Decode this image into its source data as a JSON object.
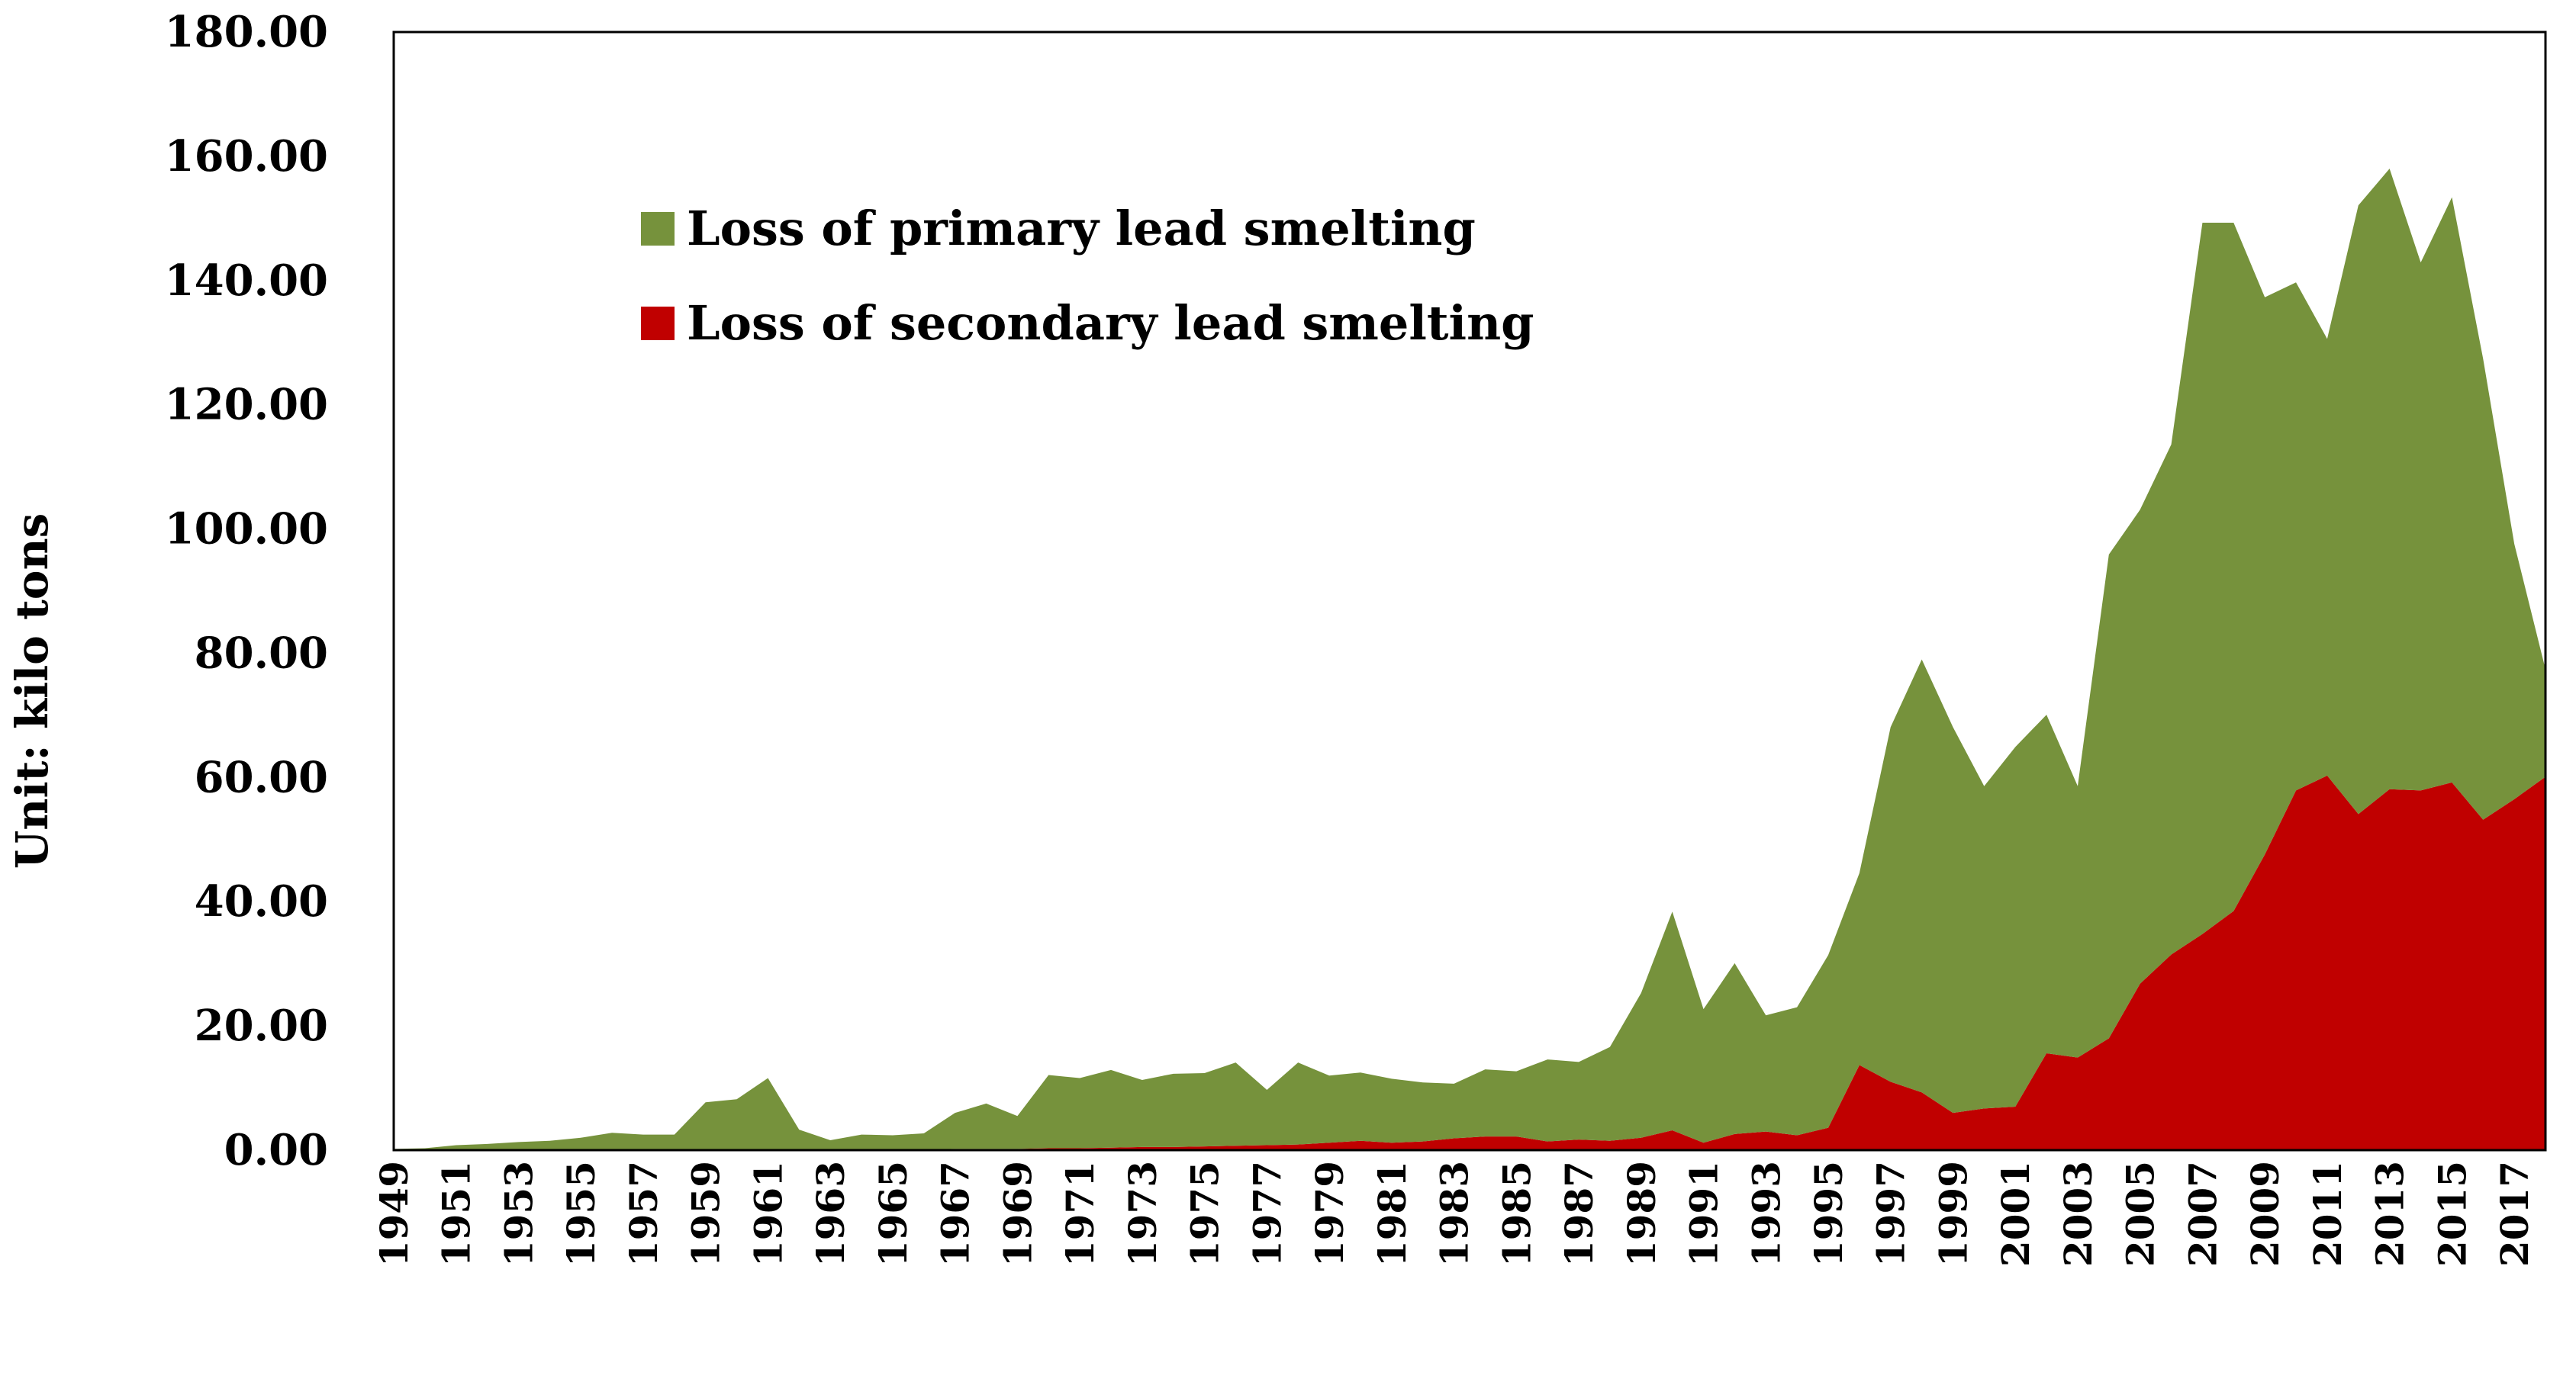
{
  "chart_data": {
    "type": "area",
    "stacked": true,
    "title": "",
    "xlabel": "",
    "ylabel": "Unit: kilo tons",
    "ylim": [
      0,
      180
    ],
    "yticks": [
      "0.00",
      "20.00",
      "40.00",
      "60.00",
      "80.00",
      "100.00",
      "120.00",
      "140.00",
      "160.00",
      "180.00"
    ],
    "x": [
      1949,
      1950,
      1951,
      1952,
      1953,
      1954,
      1955,
      1956,
      1957,
      1958,
      1959,
      1960,
      1961,
      1962,
      1963,
      1964,
      1965,
      1966,
      1967,
      1968,
      1969,
      1970,
      1971,
      1972,
      1973,
      1974,
      1975,
      1976,
      1977,
      1978,
      1979,
      1980,
      1981,
      1982,
      1983,
      1984,
      1985,
      1986,
      1987,
      1988,
      1989,
      1990,
      1991,
      1992,
      1993,
      1994,
      1995,
      1996,
      1997,
      1998,
      1999,
      2000,
      2001,
      2002,
      2003,
      2004,
      2005,
      2006,
      2007,
      2008,
      2009,
      2010,
      2011,
      2012,
      2013,
      2014,
      2015,
      2016,
      2017,
      2018
    ],
    "xtick_labels": [
      "1949",
      "1951",
      "1953",
      "1955",
      "1957",
      "1959",
      "1961",
      "1963",
      "1965",
      "1967",
      "1969",
      "1971",
      "1973",
      "1975",
      "1977",
      "1979",
      "1981",
      "1983",
      "1985",
      "1987",
      "1989",
      "1991",
      "1993",
      "1995",
      "1997",
      "1999",
      "2001",
      "2003",
      "2005",
      "2007",
      "2009",
      "2011",
      "2013",
      "2015",
      "2017"
    ],
    "legend_position": "upper-left",
    "series": [
      {
        "name": "Loss of secondary lead smelting",
        "color": "#c00000",
        "values": [
          0,
          0,
          0,
          0,
          0,
          0,
          0,
          0,
          0,
          0,
          0,
          0,
          0,
          0,
          0,
          0,
          0,
          0.1,
          0.2,
          0.2,
          0.2,
          0.3,
          0.3,
          0.4,
          0.5,
          0.5,
          0.6,
          0.7,
          0.8,
          0.9,
          1.2,
          1.5,
          1.2,
          1.4,
          1.9,
          2.2,
          2.2,
          1.4,
          1.7,
          1.5,
          2.0,
          3.2,
          1.2,
          2.6,
          3.0,
          2.4,
          3.6,
          13.7,
          11.0,
          9.3,
          6.0,
          6.7,
          7.0,
          15.6,
          14.9,
          18.0,
          26.8,
          31.5,
          34.8,
          38.5,
          47.6,
          57.9,
          60.3,
          54.1,
          58.1,
          57.9,
          59.2,
          53.2,
          56.5,
          60.1
        ]
      },
      {
        "name": "Loss of primary lead smelting",
        "color": "#76923c",
        "values": [
          0.2,
          0.3,
          0.8,
          1.0,
          1.3,
          1.5,
          2.0,
          2.8,
          2.5,
          2.5,
          7.7,
          8.2,
          11.6,
          3.3,
          1.6,
          2.5,
          2.4,
          2.6,
          5.8,
          7.3,
          5.3,
          11.8,
          11.3,
          12.5,
          10.8,
          11.8,
          11.8,
          13.4,
          8.9,
          13.2,
          10.8,
          11.0,
          10.3,
          9.5,
          8.8,
          10.8,
          10.5,
          13.2,
          12.5,
          15.1,
          23.3,
          35.2,
          21.5,
          27.5,
          18.7,
          20.6,
          27.8,
          30.9,
          57.1,
          69.7,
          62.1,
          51.9,
          57.9,
          54.5,
          43.7,
          77.9,
          76.3,
          82.1,
          114.5,
          110.8,
          89.7,
          81.8,
          70.3,
          98.0,
          99.9,
          85.0,
          94.2,
          74.2,
          41.1,
          17.3
        ]
      }
    ]
  }
}
